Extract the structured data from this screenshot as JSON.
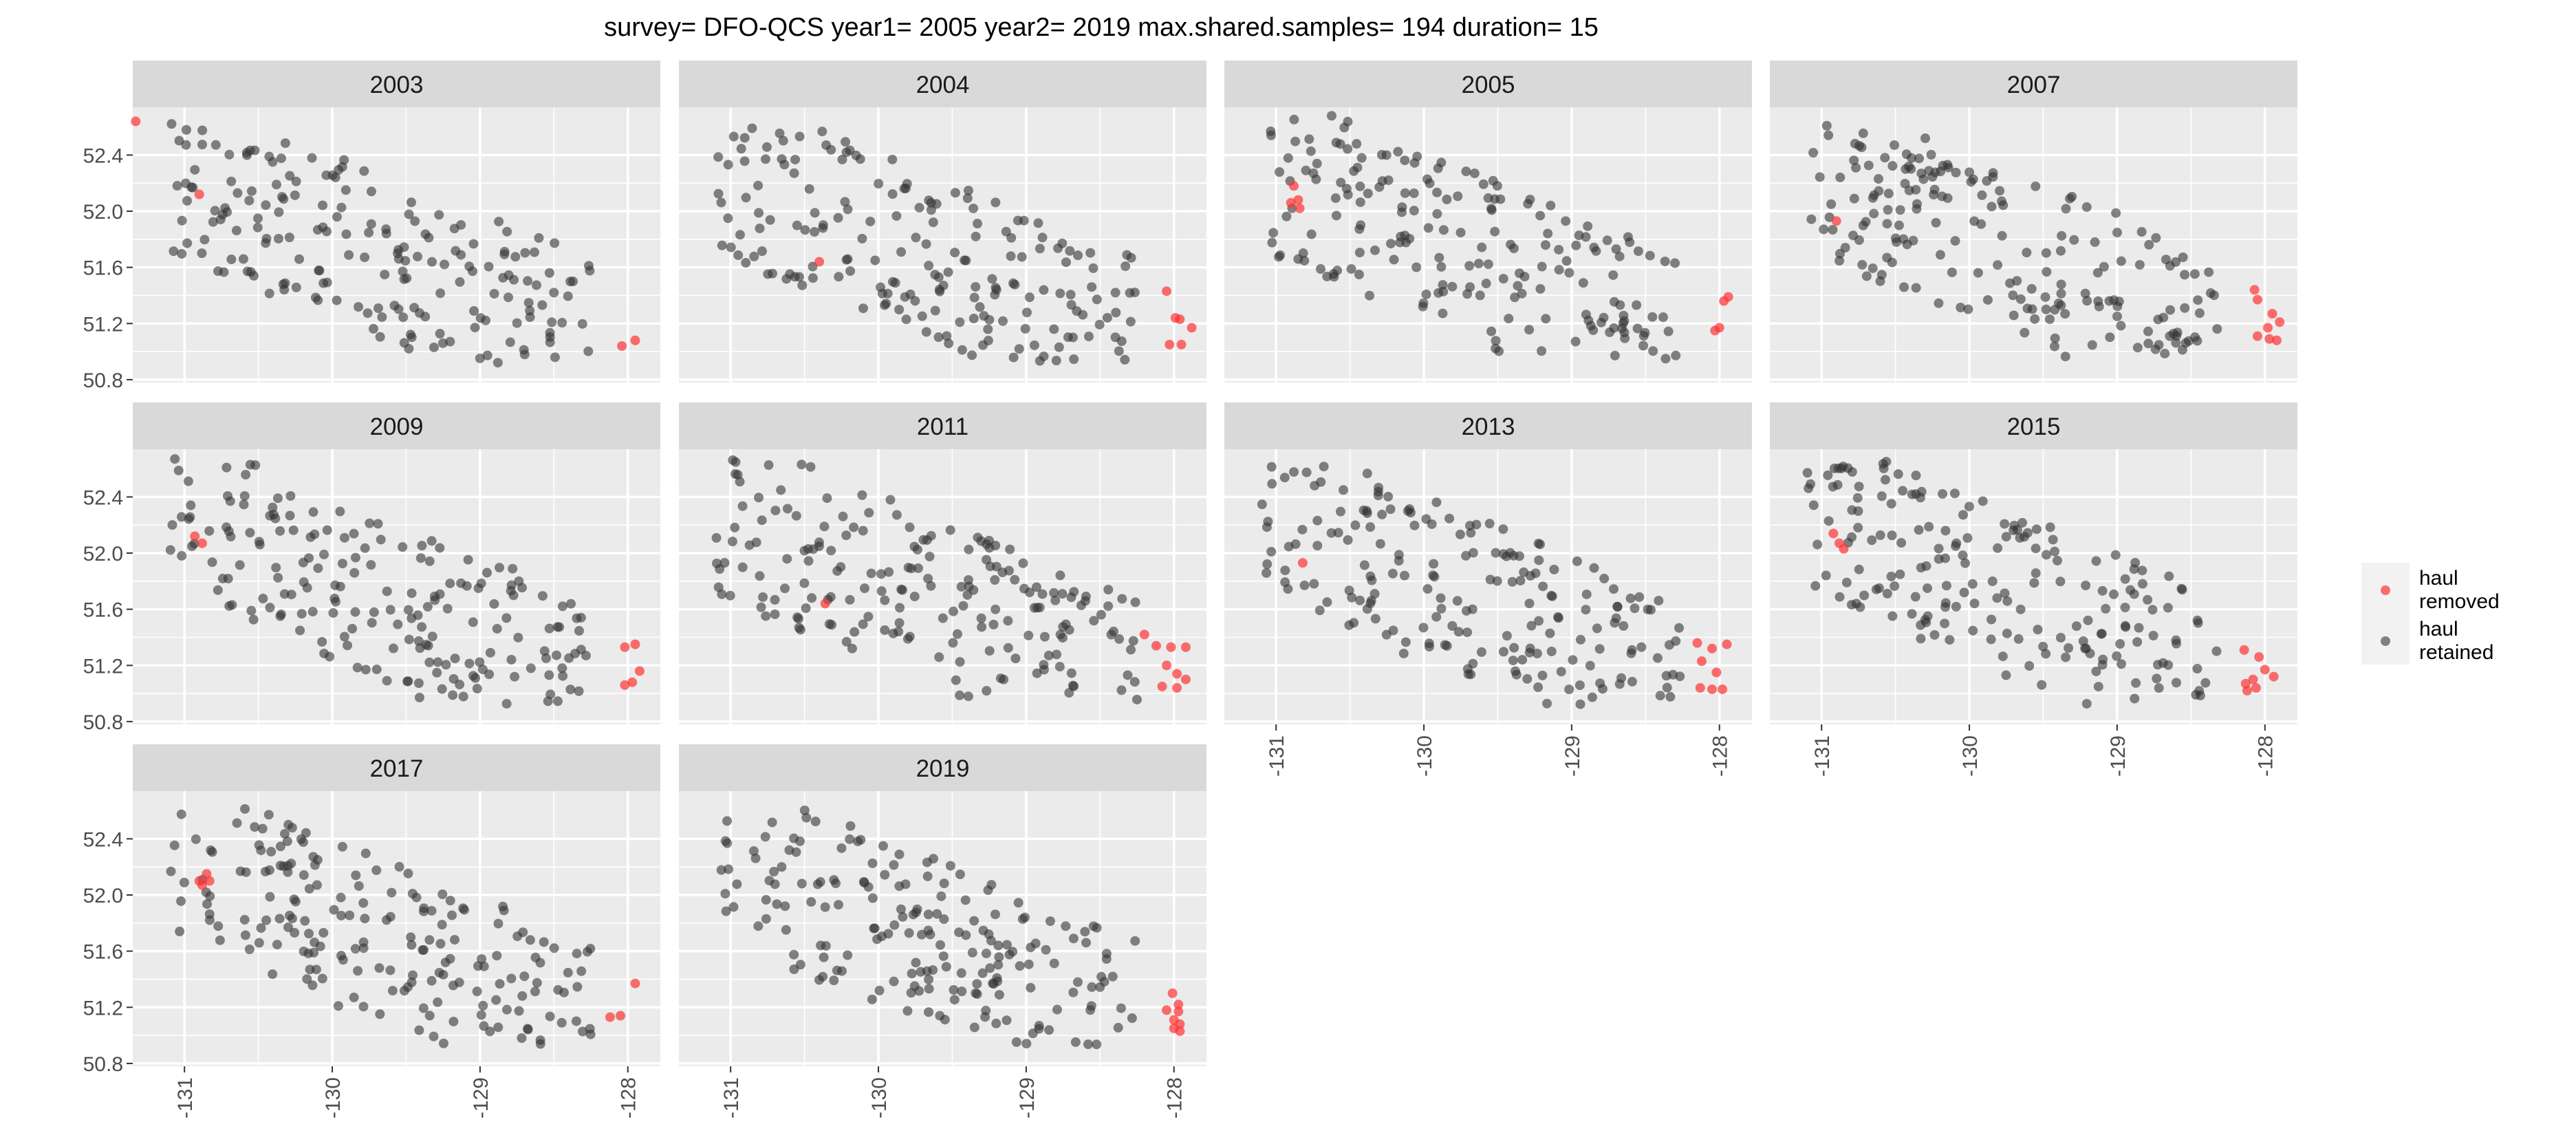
{
  "chart_data": {
    "type": "scatter",
    "title": "survey= DFO-QCS year1= 2005 year2= 2019 max.shared.samples= 194 duration= 15",
    "xlabel": "",
    "ylabel": "",
    "xlim": [
      -131.35,
      -127.78
    ],
    "ylim": [
      50.78,
      52.74
    ],
    "x_ticks": [
      -131,
      -130,
      -129,
      -128
    ],
    "y_ticks": [
      50.8,
      51.2,
      51.6,
      52.0,
      52.4
    ],
    "x_tick_labels": [
      "-131",
      "-130",
      "-129",
      "-128"
    ],
    "y_tick_labels": [
      "50.8",
      "51.2",
      "51.6",
      "52.0",
      "52.4"
    ],
    "grid": true,
    "legend": {
      "placement": "right",
      "entries": [
        {
          "label": "haul removed",
          "lines": [
            "haul",
            "removed"
          ],
          "color": "#ff3333"
        },
        {
          "label": "haul retained",
          "lines": [
            "haul",
            "retained"
          ],
          "color": "#333333"
        }
      ]
    },
    "colors": {
      "panel_bg": "#ebebeb",
      "strip_bg": "#d9d9d9",
      "grid": "#ffffff",
      "removed": "#ff3333",
      "retained": "#333333",
      "legend_bg": "#f2f2f2"
    },
    "retained_points_per_panel_approx": 190,
    "panels": [
      {
        "year": "2003",
        "removed": [
          [
            -131.33,
            52.64
          ],
          [
            -130.9,
            52.12
          ],
          [
            -128.04,
            51.04
          ],
          [
            -127.95,
            51.08
          ]
        ]
      },
      {
        "year": "2004",
        "removed": [
          [
            -130.4,
            51.64
          ],
          [
            -128.05,
            51.43
          ],
          [
            -127.99,
            51.24
          ],
          [
            -127.96,
            51.23
          ],
          [
            -127.88,
            51.17
          ],
          [
            -128.03,
            51.05
          ],
          [
            -127.95,
            51.05
          ]
        ]
      },
      {
        "year": "2005",
        "removed": [
          [
            -130.88,
            52.18
          ],
          [
            -130.85,
            52.08
          ],
          [
            -130.9,
            52.06
          ],
          [
            -130.84,
            52.02
          ],
          [
            -127.94,
            51.39
          ],
          [
            -127.97,
            51.36
          ],
          [
            -128.0,
            51.17
          ],
          [
            -128.03,
            51.15
          ]
        ]
      },
      {
        "year": "2007",
        "removed": [
          [
            -130.9,
            51.93
          ],
          [
            -128.07,
            51.44
          ],
          [
            -128.05,
            51.37
          ],
          [
            -127.95,
            51.27
          ],
          [
            -127.9,
            51.21
          ],
          [
            -127.98,
            51.17
          ],
          [
            -128.05,
            51.11
          ],
          [
            -127.97,
            51.09
          ],
          [
            -127.92,
            51.08
          ]
        ]
      },
      {
        "year": "2009",
        "removed": [
          [
            -130.93,
            52.12
          ],
          [
            -130.88,
            52.07
          ],
          [
            -127.95,
            51.35
          ],
          [
            -128.02,
            51.33
          ],
          [
            -127.92,
            51.16
          ],
          [
            -127.97,
            51.08
          ],
          [
            -128.02,
            51.06
          ]
        ]
      },
      {
        "year": "2011",
        "removed": [
          [
            -130.36,
            51.64
          ],
          [
            -128.2,
            51.42
          ],
          [
            -128.12,
            51.34
          ],
          [
            -128.02,
            51.33
          ],
          [
            -127.92,
            51.33
          ],
          [
            -128.05,
            51.2
          ],
          [
            -127.98,
            51.14
          ],
          [
            -127.92,
            51.1
          ],
          [
            -128.08,
            51.05
          ],
          [
            -127.98,
            51.04
          ]
        ]
      },
      {
        "year": "2013",
        "removed": [
          [
            -130.82,
            51.93
          ],
          [
            -128.15,
            51.36
          ],
          [
            -127.95,
            51.35
          ],
          [
            -128.05,
            51.32
          ],
          [
            -128.12,
            51.23
          ],
          [
            -128.02,
            51.15
          ],
          [
            -128.13,
            51.04
          ],
          [
            -128.05,
            51.03
          ],
          [
            -127.98,
            51.03
          ]
        ]
      },
      {
        "year": "2015",
        "removed": [
          [
            -130.92,
            52.14
          ],
          [
            -130.88,
            52.07
          ],
          [
            -130.85,
            52.03
          ],
          [
            -128.14,
            51.31
          ],
          [
            -128.04,
            51.26
          ],
          [
            -128.0,
            51.17
          ],
          [
            -127.94,
            51.12
          ],
          [
            -128.08,
            51.1
          ],
          [
            -128.13,
            51.07
          ],
          [
            -128.06,
            51.04
          ],
          [
            -128.12,
            51.02
          ]
        ]
      },
      {
        "year": "2017",
        "removed": [
          [
            -130.85,
            52.15
          ],
          [
            -130.9,
            52.1
          ],
          [
            -130.83,
            52.1
          ],
          [
            -130.88,
            52.07
          ],
          [
            -127.95,
            51.37
          ],
          [
            -128.05,
            51.14
          ],
          [
            -128.12,
            51.13
          ]
        ]
      },
      {
        "year": "2019",
        "removed": [
          [
            -128.01,
            51.3
          ],
          [
            -127.97,
            51.22
          ],
          [
            -128.05,
            51.18
          ],
          [
            -127.97,
            51.17
          ],
          [
            -128.0,
            51.11
          ],
          [
            -127.96,
            51.08
          ],
          [
            -128.0,
            51.05
          ],
          [
            -127.96,
            51.03
          ]
        ]
      }
    ]
  }
}
